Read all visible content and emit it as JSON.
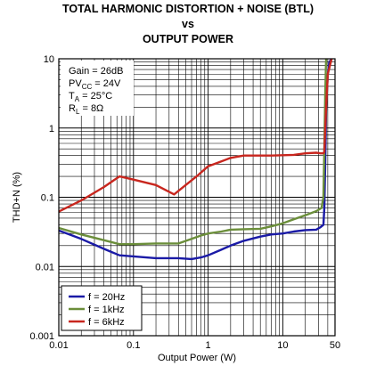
{
  "chart_data": {
    "type": "line",
    "title_lines": [
      "TOTAL HARMONIC DISTORTION + NOISE (BTL)",
      "vs",
      "OUTPUT POWER"
    ],
    "xlabel": "Output Power (W)",
    "ylabel": "THD+N (%)",
    "x_scale": "log",
    "y_scale": "log",
    "xlim": [
      0.01,
      50
    ],
    "ylim": [
      0.001,
      10
    ],
    "x_ticks": [
      {
        "value": 0.01,
        "label": "0.01"
      },
      {
        "value": 0.1,
        "label": "0.1"
      },
      {
        "value": 1,
        "label": "1"
      },
      {
        "value": 10,
        "label": "10"
      },
      {
        "value": 50,
        "label": "50"
      }
    ],
    "y_ticks": [
      {
        "value": 10,
        "label": "10"
      },
      {
        "value": 1,
        "label": "1"
      },
      {
        "value": 0.1,
        "label": "0.1"
      },
      {
        "value": 0.01,
        "label": "0.01"
      },
      {
        "value": 0.001,
        "label": "0.001"
      }
    ],
    "grid": true,
    "conditions": [
      {
        "main": "Gain = 26dB",
        "sub": "",
        "rest": ""
      },
      {
        "main": "PV",
        "sub": "CC",
        "rest": " = 24V"
      },
      {
        "main": "T",
        "sub": "A",
        "rest": " = 25°C"
      },
      {
        "main": "R",
        "sub": "L",
        "rest": " = 8Ω"
      }
    ],
    "legend_position": "bottom-left",
    "series": [
      {
        "name": "f = 20Hz",
        "color": "#1a1aa6",
        "x": [
          0.01,
          0.02,
          0.04,
          0.065,
          0.1,
          0.2,
          0.4,
          0.6,
          0.8,
          1,
          1.5,
          2,
          3,
          5,
          7,
          10,
          14,
          20,
          28,
          32,
          35,
          36,
          37,
          38,
          40,
          42,
          45
        ],
        "values": [
          0.033,
          0.025,
          0.018,
          0.0145,
          0.014,
          0.0132,
          0.0132,
          0.0128,
          0.0135,
          0.0145,
          0.0175,
          0.02,
          0.0235,
          0.027,
          0.029,
          0.03,
          0.032,
          0.0335,
          0.034,
          0.037,
          0.04,
          0.07,
          0.3,
          2,
          6,
          9,
          10
        ]
      },
      {
        "name": "f = 1kHz",
        "color": "#6b8e3a",
        "x": [
          0.01,
          0.02,
          0.04,
          0.065,
          0.1,
          0.2,
          0.4,
          0.6,
          0.8,
          1,
          1.5,
          2,
          3,
          5,
          7,
          10,
          14,
          20,
          28,
          33,
          35,
          36,
          37,
          38
        ],
        "values": [
          0.036,
          0.029,
          0.024,
          0.021,
          0.021,
          0.0215,
          0.0215,
          0.025,
          0.028,
          0.03,
          0.032,
          0.034,
          0.0345,
          0.035,
          0.038,
          0.042,
          0.048,
          0.055,
          0.063,
          0.07,
          0.1,
          0.5,
          3,
          10
        ]
      },
      {
        "name": "f = 6kHz",
        "color": "#c8261e",
        "x": [
          0.01,
          0.02,
          0.04,
          0.065,
          0.1,
          0.2,
          0.35,
          0.5,
          0.7,
          1,
          1.5,
          2,
          3,
          5,
          7,
          10,
          14,
          20,
          28,
          32,
          35,
          36,
          38,
          40,
          45
        ],
        "values": [
          0.062,
          0.09,
          0.14,
          0.2,
          0.18,
          0.15,
          0.11,
          0.15,
          0.2,
          0.28,
          0.33,
          0.37,
          0.4,
          0.4,
          0.4,
          0.405,
          0.41,
          0.43,
          0.44,
          0.43,
          0.43,
          0.45,
          2,
          6,
          10
        ]
      }
    ]
  }
}
